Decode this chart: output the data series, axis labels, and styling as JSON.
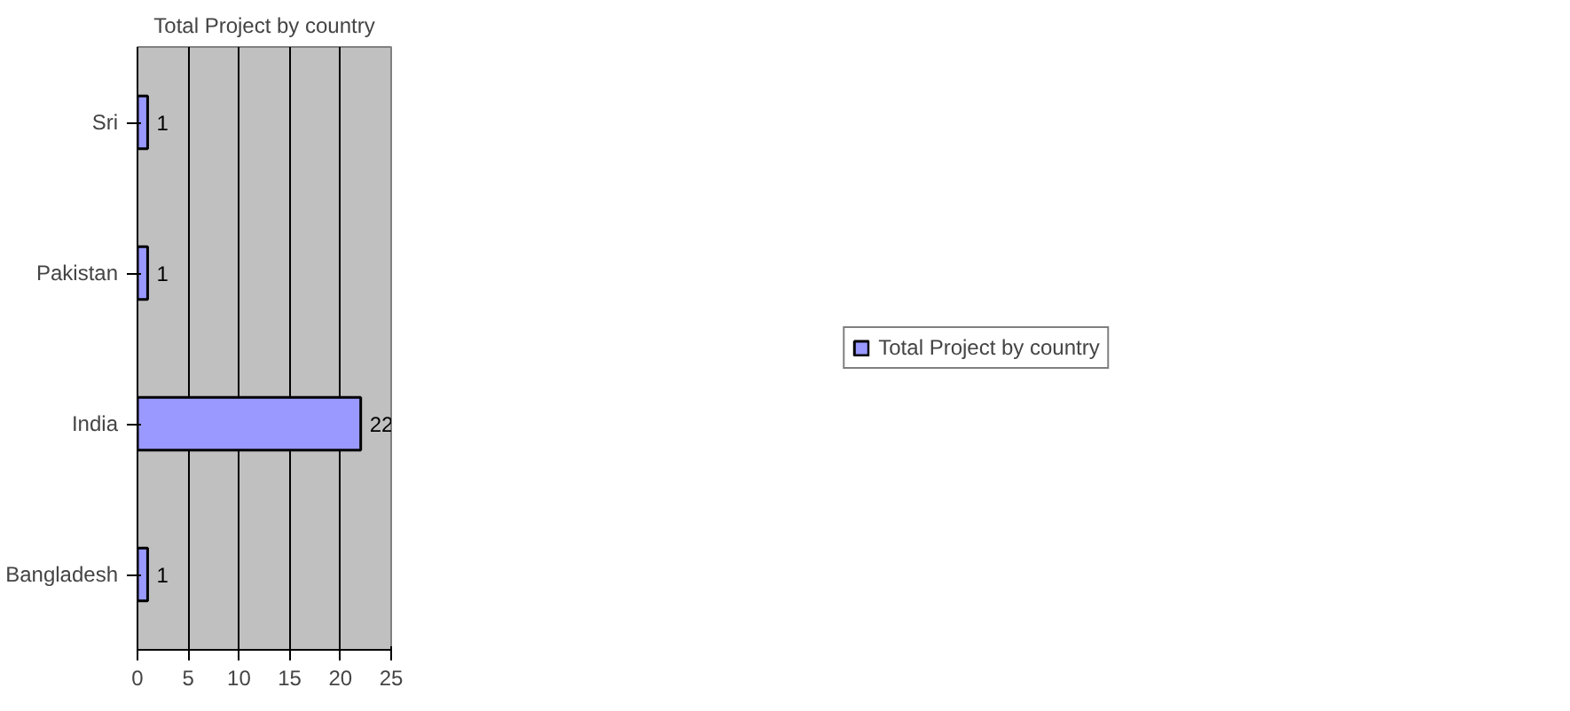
{
  "chart_data": {
    "type": "bar",
    "orientation": "horizontal",
    "title": "Total Project by country",
    "categories": [
      "Sri",
      "Pakistan",
      "India",
      "Bangladesh"
    ],
    "series": [
      {
        "name": "Total Project by country",
        "color": "#9999ff",
        "values": [
          1,
          1,
          22,
          1
        ]
      }
    ],
    "xlim": [
      0,
      25
    ],
    "xticks": [
      0,
      5,
      10,
      15,
      20,
      25
    ],
    "grid": "x",
    "legend": "right",
    "data_labels": true
  }
}
